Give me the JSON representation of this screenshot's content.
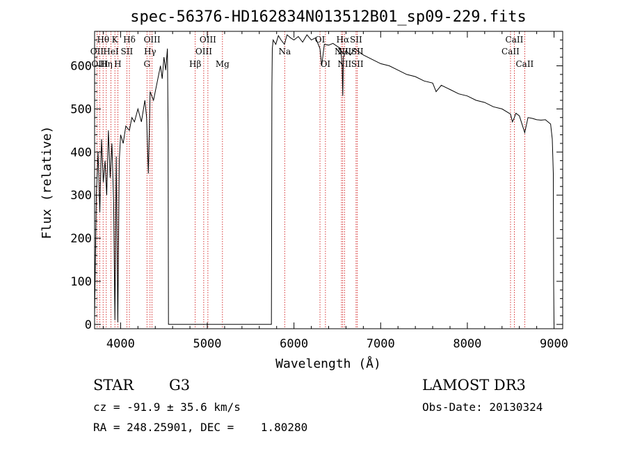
{
  "chart_data": {
    "type": "line",
    "title": "spec-56376-HD162834N013512B01_sp09-229.fits",
    "xlabel": "Wavelength (Å)",
    "ylabel": "Flux (relative)",
    "xlim": [
      3700,
      9100
    ],
    "ylim": [
      -10,
      680
    ],
    "x_ticks": [
      4000,
      5000,
      6000,
      7000,
      8000,
      9000
    ],
    "y_ticks": [
      0,
      100,
      200,
      300,
      400,
      500,
      600
    ],
    "grid": false,
    "series": [
      {
        "name": "spectrum",
        "x": [
          3700,
          3720,
          3740,
          3760,
          3780,
          3800,
          3820,
          3840,
          3860,
          3880,
          3900,
          3920,
          3934,
          3950,
          3968,
          3985,
          4000,
          4030,
          4060,
          4101,
          4130,
          4160,
          4200,
          4240,
          4280,
          4300,
          4320,
          4340,
          4380,
          4420,
          4460,
          4480,
          4500,
          4520,
          4540,
          4548,
          4552,
          4560,
          5000,
          5500,
          5740,
          5745,
          5750,
          5760,
          5790,
          5820,
          5850,
          5890,
          5920,
          5960,
          6000,
          6050,
          6100,
          6150,
          6200,
          6250,
          6280,
          6300,
          6320,
          6350,
          6400,
          6450,
          6500,
          6540,
          6556,
          6563,
          6570,
          6600,
          6650,
          6700,
          6800,
          6900,
          7000,
          7100,
          7200,
          7300,
          7400,
          7500,
          7600,
          7640,
          7700,
          7800,
          7900,
          8000,
          8100,
          8200,
          8300,
          8400,
          8498,
          8520,
          8542,
          8560,
          8600,
          8662,
          8700,
          8750,
          8800,
          8850,
          8900,
          8960,
          8980,
          8992,
          8996,
          9000
        ],
        "y": [
          20,
          300,
          400,
          260,
          430,
          330,
          380,
          300,
          450,
          340,
          420,
          280,
          10,
          390,
          5,
          380,
          440,
          420,
          460,
          450,
          480,
          470,
          500,
          470,
          520,
          480,
          350,
          540,
          520,
          560,
          600,
          570,
          620,
          590,
          640,
          450,
          0,
          0,
          0,
          0,
          0,
          550,
          640,
          660,
          650,
          670,
          660,
          650,
          672,
          665,
          660,
          668,
          655,
          672,
          660,
          665,
          650,
          640,
          600,
          650,
          648,
          652,
          645,
          640,
          600,
          530,
          620,
          635,
          625,
          640,
          625,
          615,
          605,
          600,
          590,
          580,
          575,
          565,
          560,
          540,
          555,
          545,
          535,
          530,
          520,
          515,
          505,
          500,
          488,
          470,
          480,
          490,
          484,
          445,
          480,
          478,
          475,
          474,
          475,
          465,
          430,
          350,
          95,
          0
        ]
      }
    ],
    "lines_top": [
      {
        "label": "Hθ",
        "x": 3798
      },
      {
        "label": "K",
        "x": 3934
      },
      {
        "label": "Hδ",
        "x": 4101
      },
      {
        "label": "OIII",
        "x": 4363
      },
      {
        "label": "OIII",
        "x": 5007
      },
      {
        "label": "OI",
        "x": 6300
      },
      {
        "label": "Hα",
        "x": 6563
      },
      {
        "label": "SII",
        "x": 6716
      },
      {
        "label": "CaII",
        "x": 8542
      }
    ],
    "lines_mid": [
      {
        "label": "OII",
        "x": 3727
      },
      {
        "label": "HeI",
        "x": 3889
      },
      {
        "label": "SII",
        "x": 4072
      },
      {
        "label": "Hγ",
        "x": 4340
      },
      {
        "label": "OIII",
        "x": 4959
      },
      {
        "label": "Na",
        "x": 5893
      },
      {
        "label": "NII",
        "x": 6548
      },
      {
        "label": "NII",
        "x": 6583
      },
      {
        "label": "SII",
        "x": 6731
      },
      {
        "label": "CaII",
        "x": 8498
      }
    ],
    "lines_low": [
      {
        "label": "OIII",
        "x": 3760
      },
      {
        "label": "Hη",
        "x": 3835
      },
      {
        "label": "H",
        "x": 3968
      },
      {
        "label": "G",
        "x": 4304
      },
      {
        "label": "Hβ",
        "x": 4861
      },
      {
        "label": "Mg",
        "x": 5175
      },
      {
        "label": "OI",
        "x": 6363
      },
      {
        "label": "NII",
        "x": 6583
      },
      {
        "label": "SII",
        "x": 6731
      },
      {
        "label": "CaII",
        "x": 8662
      }
    ]
  },
  "info": {
    "object_class": "STAR",
    "subclass": "G3",
    "survey": "LAMOST DR3",
    "cz": "cz = -91.9 ± 35.6 km/s",
    "obs_date": "Obs-Date: 20130324",
    "coords": "RA = 248.25901, DEC =    1.80280"
  },
  "colors": {
    "spectrum": "#000000",
    "line_marker": "#cc0000",
    "axes": "#000000"
  }
}
